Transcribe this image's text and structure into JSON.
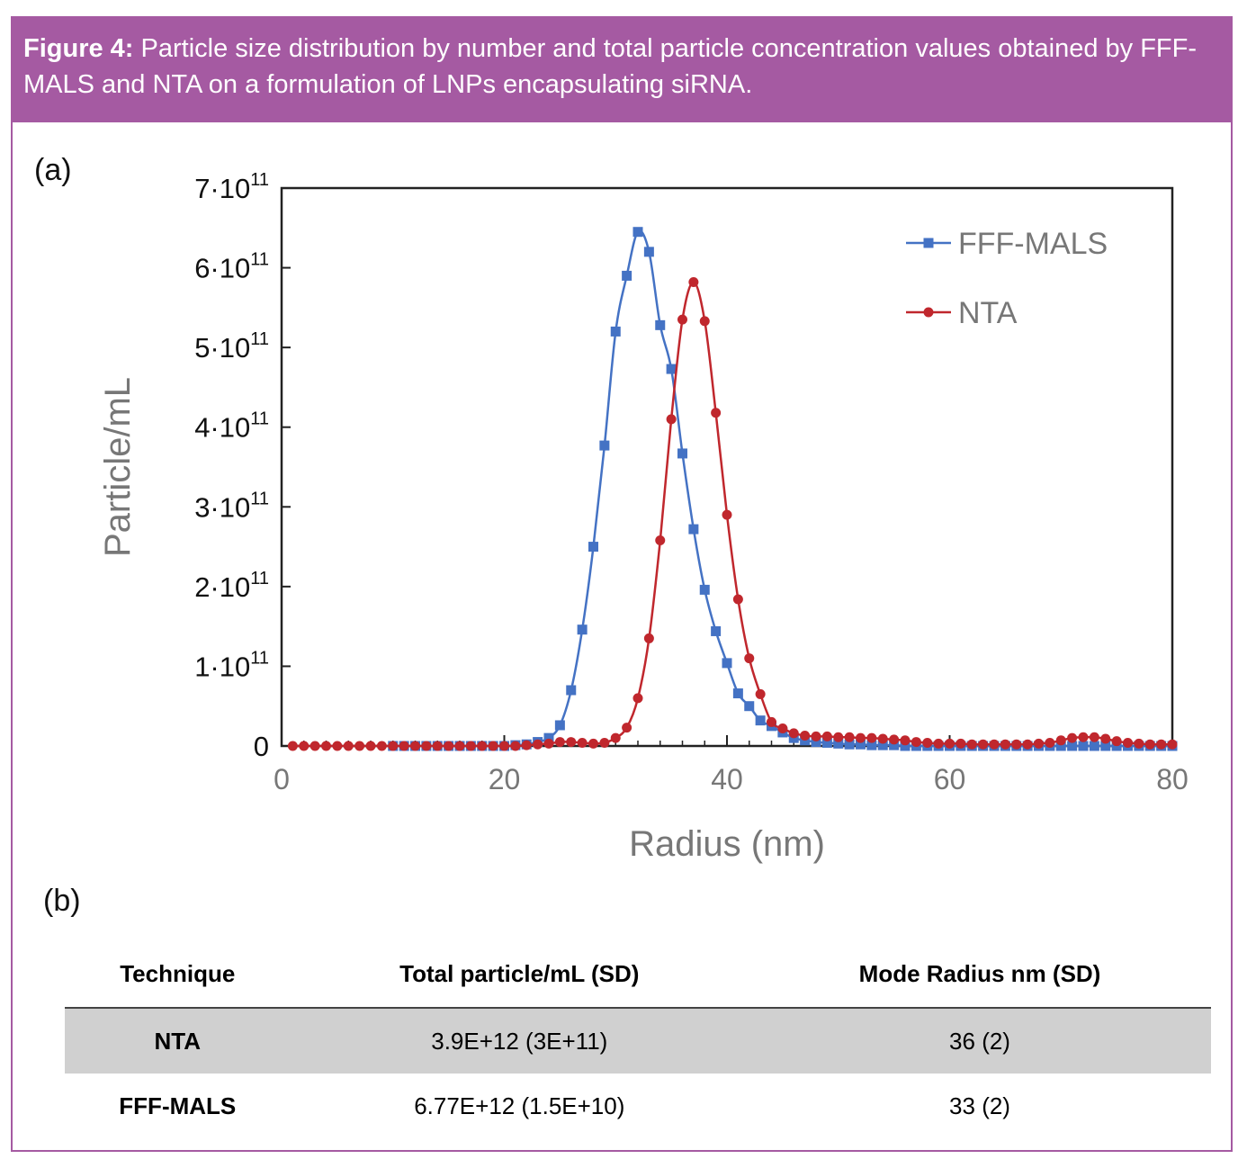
{
  "figure": {
    "label": "Figure 4:",
    "caption": "Particle size distribution by number and total particle concentration values obtained by FFF-MALS and NTA on a formulation of LNPs encapsulating siRNA.",
    "panel_a": "(a)",
    "panel_b": "(b)"
  },
  "colors": {
    "header": "#a55aa2",
    "fff_mals": "#4472c4",
    "nta": "#c0272d",
    "axis": "#222222",
    "label_gray": "#777777"
  },
  "chart_data": {
    "type": "line",
    "xlabel": "Radius (nm)",
    "ylabel": "Particle/mL",
    "xlim": [
      0,
      80
    ],
    "ylim": [
      0,
      700000000000.0
    ],
    "xticks": [
      0,
      20,
      40,
      60,
      80
    ],
    "xtick_labels": [
      "0",
      "20",
      "40",
      "60",
      "80"
    ],
    "yticks": [
      0,
      100000000000.0,
      200000000000.0,
      300000000000.0,
      400000000000.0,
      500000000000.0,
      600000000000.0,
      700000000000.0
    ],
    "ytick_labels": [
      {
        "base": "0",
        "exp": ""
      },
      {
        "base": "1·10",
        "exp": "11"
      },
      {
        "base": "2·10",
        "exp": "11"
      },
      {
        "base": "3·10",
        "exp": "11"
      },
      {
        "base": "4·10",
        "exp": "11"
      },
      {
        "base": "5·10",
        "exp": "11"
      },
      {
        "base": "6·10",
        "exp": "11"
      },
      {
        "base": "7·10",
        "exp": "11"
      }
    ],
    "legend_position": "top-right",
    "grid": false,
    "series": [
      {
        "name": "FFF-MALS",
        "marker": "square",
        "color": "#4472c4",
        "x": [
          10,
          11,
          12,
          13,
          14,
          15,
          16,
          17,
          18,
          19,
          20,
          21,
          22,
          23,
          24,
          25,
          26,
          27,
          28,
          29,
          30,
          31,
          32,
          33,
          34,
          35,
          36,
          37,
          38,
          39,
          40,
          41,
          42,
          43,
          44,
          45,
          46,
          47,
          48,
          49,
          50,
          51,
          52,
          53,
          54,
          55,
          56,
          57,
          58,
          59,
          60,
          61,
          62,
          63,
          64,
          65,
          66,
          67,
          68,
          69,
          70,
          71,
          72,
          73,
          74,
          75,
          76,
          77,
          78,
          79,
          80
        ],
        "y": [
          0,
          0,
          0,
          0,
          0,
          0,
          0,
          0,
          0,
          0,
          0,
          1000000000.0,
          2000000000.0,
          5000000000.0,
          10000000000.0,
          26000000000.0,
          70000000000.0,
          146000000000.0,
          250000000000.0,
          377000000000.0,
          520000000000.0,
          590000000000.0,
          645000000000.0,
          620000000000.0,
          528000000000.0,
          473000000000.0,
          367000000000.0,
          272000000000.0,
          196000000000.0,
          144000000000.0,
          104000000000.0,
          66000000000.0,
          50000000000.0,
          32000000000.0,
          25000000000.0,
          17000000000.0,
          10000000000.0,
          7000000000.0,
          5000000000.0,
          4000000000.0,
          3000000000.0,
          2000000000.0,
          2000000000.0,
          1000000000.0,
          1000000000.0,
          1000000000.0,
          0,
          0,
          0,
          0,
          0,
          0,
          0,
          0,
          0,
          0,
          0,
          0,
          0,
          0,
          0,
          0,
          0,
          0,
          0,
          0,
          0,
          0,
          0,
          0,
          0
        ]
      },
      {
        "name": "NTA",
        "marker": "circle",
        "color": "#c0272d",
        "x": [
          1,
          2,
          3,
          4,
          5,
          6,
          7,
          8,
          9,
          10,
          11,
          12,
          13,
          14,
          15,
          16,
          17,
          18,
          19,
          20,
          21,
          22,
          23,
          24,
          25,
          26,
          27,
          28,
          29,
          30,
          31,
          32,
          33,
          34,
          35,
          36,
          37,
          38,
          39,
          40,
          41,
          42,
          43,
          44,
          45,
          46,
          47,
          48,
          49,
          50,
          51,
          52,
          53,
          54,
          55,
          56,
          57,
          58,
          59,
          60,
          61,
          62,
          63,
          64,
          65,
          66,
          67,
          68,
          69,
          70,
          71,
          72,
          73,
          74,
          75,
          76,
          77,
          78,
          79,
          80
        ],
        "y": [
          0,
          0,
          0,
          0,
          0,
          0,
          0,
          0,
          0,
          0,
          0,
          0,
          0,
          0,
          0,
          0,
          0,
          0,
          0,
          0,
          0,
          1000000000.0,
          2000000000.0,
          3000000000.0,
          5000000000.0,
          5000000000.0,
          4000000000.0,
          3000000000.0,
          4000000000.0,
          10000000000.0,
          23000000000.0,
          60000000000.0,
          135000000000.0,
          258000000000.0,
          410000000000.0,
          535000000000.0,
          582000000000.0,
          533000000000.0,
          418000000000.0,
          290000000000.0,
          184000000000.0,
          110000000000.0,
          65000000000.0,
          30000000000.0,
          22000000000.0,
          16000000000.0,
          13000000000.0,
          12000000000.0,
          12000000000.0,
          11000000000.0,
          11000000000.0,
          10000000000.0,
          10000000000.0,
          9000000000.0,
          8000000000.0,
          7000000000.0,
          5000000000.0,
          4000000000.0,
          3000000000.0,
          3000000000.0,
          3000000000.0,
          2000000000.0,
          2000000000.0,
          2000000000.0,
          2000000000.0,
          2000000000.0,
          2000000000.0,
          3000000000.0,
          4000000000.0,
          7000000000.0,
          10000000000.0,
          11000000000.0,
          11000000000.0,
          9000000000.0,
          6000000000.0,
          4000000000.0,
          3000000000.0,
          2000000000.0,
          2000000000.0,
          2000000000.0
        ]
      }
    ]
  },
  "table": {
    "headers": [
      "Technique",
      "Total particle/mL (SD)",
      "Mode Radius nm (SD)"
    ],
    "rows": [
      {
        "technique": "NTA",
        "total": "3.9E+12 (3E+11)",
        "mode": "36 (2)"
      },
      {
        "technique": "FFF-MALS",
        "total": "6.77E+12 (1.5E+10)",
        "mode": "33 (2)"
      }
    ]
  }
}
